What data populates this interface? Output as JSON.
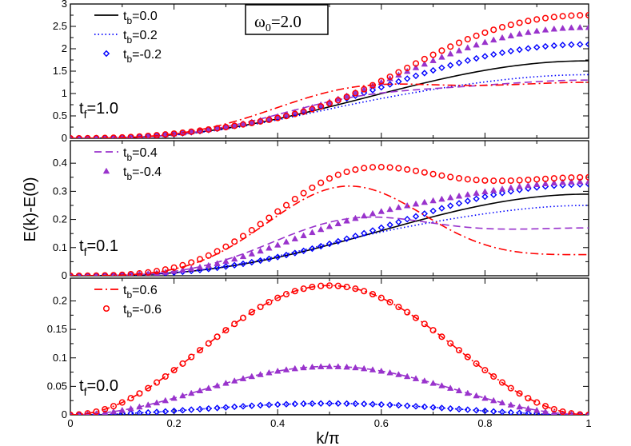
{
  "chart_data": {
    "type": "line",
    "figure_label": {
      "symbol": "ω",
      "sub": "0",
      "rest": "=2.0"
    },
    "xlabel": "k/π",
    "ylabel": "E(k)-E(0)",
    "xlim": [
      0,
      1
    ],
    "x_ticks": [
      "0",
      "0.2",
      "0.4",
      "0.6",
      "0.8",
      "1"
    ],
    "x_tick_values": [
      0,
      0.2,
      0.4,
      0.6,
      0.8,
      1.0
    ],
    "colors": {
      "black": "#000000",
      "blue": "#0000ff",
      "purple": "#9933cc",
      "red": "#ff0000"
    },
    "panels": [
      {
        "id": "top",
        "label": {
          "main": "t",
          "sub": "f",
          "rest": "=1.0"
        },
        "ylim": [
          0,
          3
        ],
        "y_ticks": [
          "0",
          "0.5",
          "1",
          "1.5",
          "2",
          "2.5",
          "3"
        ],
        "y_tick_values": [
          0,
          0.5,
          1,
          1.5,
          2,
          2.5,
          3
        ],
        "legend": [
          {
            "main": "t",
            "sub": "b",
            "rest": "=0.0",
            "series": 0
          },
          {
            "main": "t",
            "sub": "b",
            "rest": "=0.2",
            "series": 1
          },
          {
            "main": "t",
            "sub": "b",
            "rest": "=-0.2",
            "series": 2
          }
        ],
        "series": [
          {
            "name": "t_b=0.0",
            "style": "solid",
            "color": "#000000",
            "peak": 1.73,
            "p": 1.3
          },
          {
            "name": "t_b=0.2",
            "style": "dotted",
            "color": "#0000ff",
            "peak": 1.42,
            "p": 1.3,
            "bump": 0.08
          },
          {
            "name": "t_b=-0.2",
            "style": "diamond",
            "color": "#0000ff",
            "peak": 2.1,
            "p": 1.3,
            "bump": -0.08
          },
          {
            "name": "t_b=0.4",
            "style": "dashed",
            "color": "#9933cc",
            "peak": 1.3,
            "p": 1.3,
            "bump": 0.3
          },
          {
            "name": "t_b=-0.4",
            "style": "triangle",
            "color": "#9933cc",
            "peak": 2.48,
            "p": 1.3,
            "bump": -0.2
          },
          {
            "name": "t_b=0.6",
            "style": "dashdot",
            "color": "#ff0000",
            "peak": 1.25,
            "p": 1.3,
            "bump": 0.55
          },
          {
            "name": "t_b=-0.6",
            "style": "circle",
            "color": "#ff0000",
            "peak": 2.75,
            "p": 1.3,
            "bump": -0.35
          }
        ]
      },
      {
        "id": "middle",
        "label": {
          "main": "t",
          "sub": "f",
          "rest": "=0.1"
        },
        "ylim": [
          0,
          0.48
        ],
        "y_ticks": [
          "0",
          "0.1",
          "0.2",
          "0.3",
          "0.4"
        ],
        "y_tick_values": [
          0,
          0.1,
          0.2,
          0.3,
          0.4
        ],
        "legend": [
          {
            "main": "t",
            "sub": "b",
            "rest": "=0.4",
            "series": 3
          },
          {
            "main": "t",
            "sub": "b",
            "rest": "=-0.4",
            "series": 4
          }
        ],
        "series": [
          {
            "name": "t_b=0.0",
            "style": "solid",
            "color": "#000000",
            "peak": 0.29,
            "p": 1.4
          },
          {
            "name": "t_b=0.2",
            "style": "dotted",
            "color": "#0000ff",
            "peak": 0.25,
            "p": 1.4,
            "bump": 0.02
          },
          {
            "name": "t_b=-0.2",
            "style": "diamond",
            "color": "#0000ff",
            "peak": 0.325,
            "p": 1.4,
            "bump": -0.01
          },
          {
            "name": "t_b=0.4",
            "style": "dashed",
            "color": "#9933cc",
            "peak": 0.17,
            "p": 1.4,
            "bump": 0.13
          },
          {
            "name": "t_b=-0.4",
            "style": "triangle",
            "color": "#9933cc",
            "peak": 0.335,
            "p": 1.4,
            "bump": 0.05
          },
          {
            "name": "t_b=0.6",
            "style": "dashdot",
            "color": "#ff0000",
            "peak": 0.075,
            "p": 1.4,
            "bump": 0.29
          },
          {
            "name": "t_b=-0.6",
            "style": "circle",
            "color": "#ff0000",
            "peak": 0.35,
            "p": 1.4,
            "bump": 0.22
          }
        ]
      },
      {
        "id": "bottom",
        "label": {
          "main": "t",
          "sub": "f",
          "rest": "=0.0"
        },
        "ylim": [
          0,
          0.24
        ],
        "y_ticks": [
          "0",
          "0.05",
          "0.1",
          "0.15",
          "0.2"
        ],
        "y_tick_values": [
          0,
          0.05,
          0.1,
          0.15,
          0.2
        ],
        "legend": [
          {
            "main": "t",
            "sub": "b",
            "rest": "=0.6",
            "series": 5
          },
          {
            "main": "t",
            "sub": "b",
            "rest": "=-0.6",
            "series": 6
          }
        ],
        "series": [
          {
            "name": "t_b=0.0",
            "style": "solid",
            "color": "#000000",
            "amp": 0.0,
            "p": 1
          },
          {
            "name": "t_b=0.2",
            "style": "dotted",
            "color": "#0000ff",
            "amp": 0.02,
            "p": 1
          },
          {
            "name": "t_b=-0.2",
            "style": "diamond",
            "color": "#0000ff",
            "amp": 0.02,
            "p": 1
          },
          {
            "name": "t_b=0.4",
            "style": "dashed",
            "color": "#9933cc",
            "amp": 0.085,
            "p": 1
          },
          {
            "name": "t_b=-0.4",
            "style": "triangle",
            "color": "#9933cc",
            "amp": 0.085,
            "p": 1
          },
          {
            "name": "t_b=0.6",
            "style": "dashdot",
            "color": "#ff0000",
            "amp": 0.227,
            "p": 1
          },
          {
            "name": "t_b=-0.6",
            "style": "circle",
            "color": "#ff0000",
            "amp": 0.227,
            "p": 1
          }
        ]
      }
    ]
  }
}
